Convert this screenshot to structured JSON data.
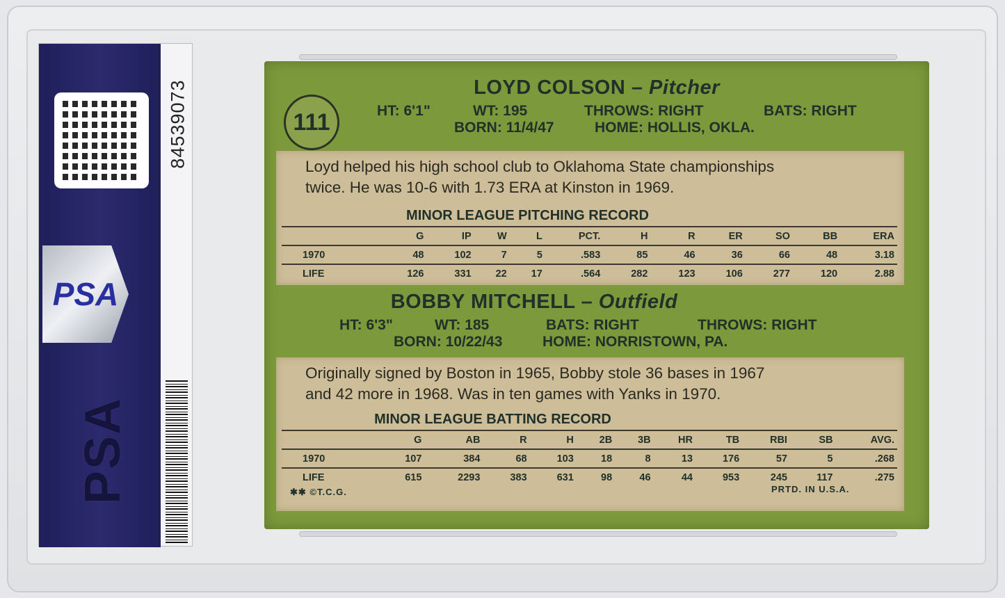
{
  "label": {
    "cert_number": "84539073",
    "brand": "PSA"
  },
  "card": {
    "number": "111",
    "player1": {
      "name": "LOYD COLSON",
      "position": "Pitcher",
      "ht": "HT: 6'1\"",
      "wt": "WT: 195",
      "throws": "THROWS: RIGHT",
      "bats": "BATS: RIGHT",
      "born": "BORN: 11/4/47",
      "home": "HOME: HOLLIS, OKLA.",
      "bio": [
        "Loyd helped his high school club to Oklahoma State championships",
        "twice. He was 10-6 with 1.73 ERA at Kinston in 1969."
      ],
      "record_title": "MINOR LEAGUE PITCHING RECORD",
      "columns": [
        "",
        "G",
        "IP",
        "W",
        "L",
        "PCT.",
        "H",
        "R",
        "ER",
        "SO",
        "BB",
        "ERA"
      ],
      "rows": [
        [
          "1970",
          "48",
          "102",
          "7",
          "5",
          ".583",
          "85",
          "46",
          "36",
          "66",
          "48",
          "3.18"
        ],
        [
          "LIFE",
          "126",
          "331",
          "22",
          "17",
          ".564",
          "282",
          "123",
          "106",
          "277",
          "120",
          "2.88"
        ]
      ]
    },
    "player2": {
      "name": "BOBBY MITCHELL",
      "position": "Outfield",
      "ht": "HT: 6'3\"",
      "wt": "WT: 185",
      "bats": "BATS: RIGHT",
      "throws": "THROWS: RIGHT",
      "born": "BORN: 10/22/43",
      "home": "HOME: NORRISTOWN, PA.",
      "bio": [
        "Originally signed by Boston in 1965, Bobby stole 36 bases in 1967",
        "and 42 more in 1968. Was in ten games with Yanks in 1970."
      ],
      "record_title": "MINOR LEAGUE BATTING RECORD",
      "columns": [
        "",
        "G",
        "AB",
        "R",
        "H",
        "2B",
        "3B",
        "HR",
        "TB",
        "RBI",
        "SB",
        "AVG."
      ],
      "rows": [
        [
          "1970",
          "107",
          "384",
          "68",
          "103",
          "18",
          "8",
          "13",
          "176",
          "57",
          "5",
          ".268"
        ],
        [
          "LIFE",
          "615",
          "2293",
          "383",
          "631",
          "98",
          "46",
          "44",
          "953",
          "245",
          "117",
          ".275"
        ]
      ]
    },
    "copyright": "✱✱ ©T.C.G.",
    "printed": "PRTD. IN U.S.A."
  }
}
